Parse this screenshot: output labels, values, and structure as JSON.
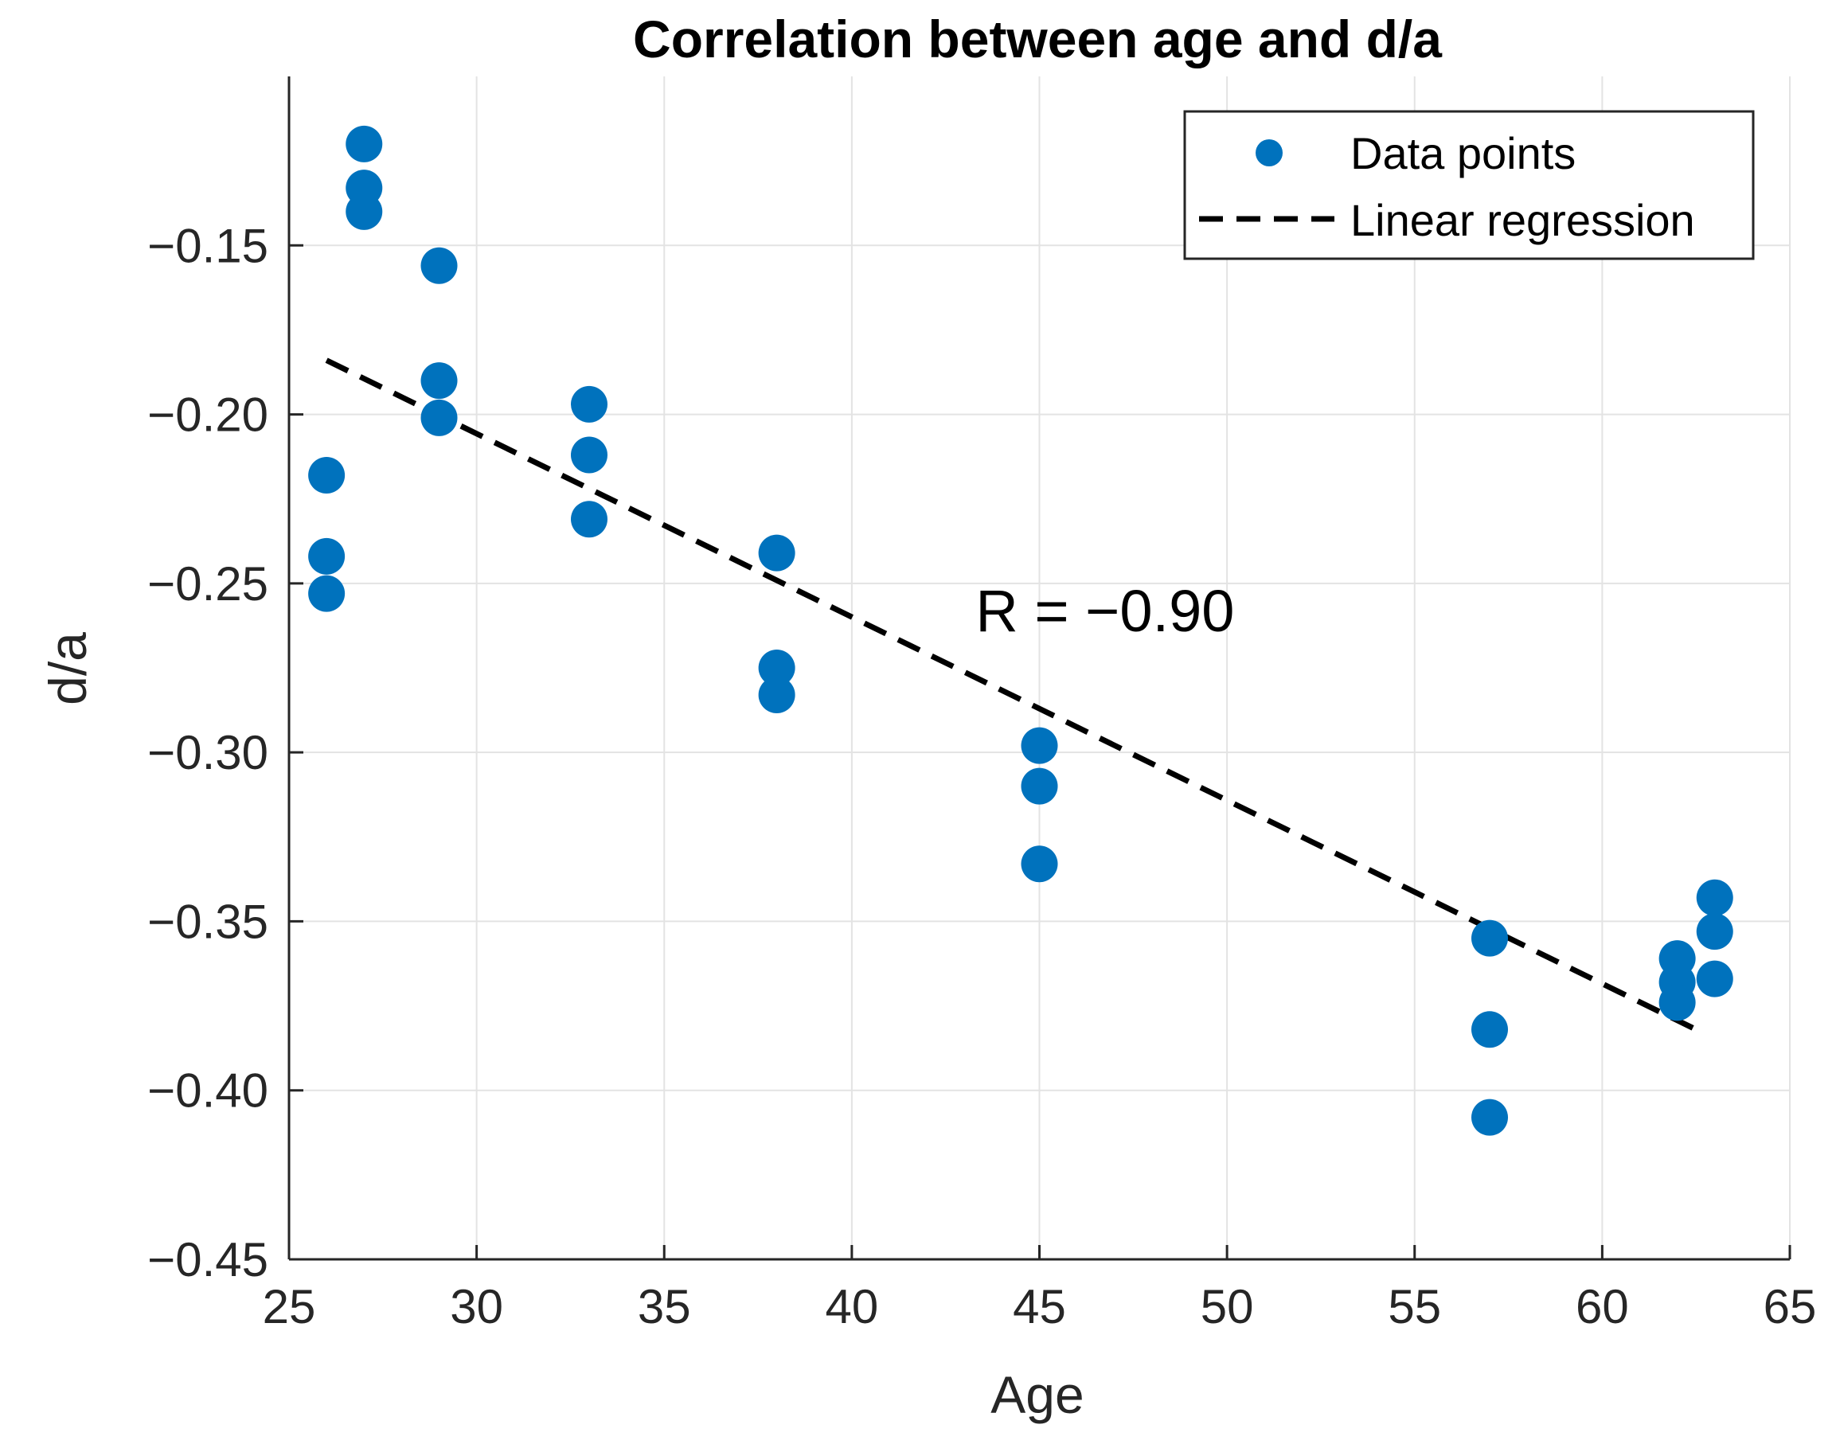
{
  "chart_data": {
    "type": "scatter",
    "title": "Correlation between age and d/a",
    "xlabel": "Age",
    "ylabel": "d/a",
    "xlim": [
      25,
      65
    ],
    "ylim": [
      -0.45,
      -0.1
    ],
    "x_ticks": [
      25,
      30,
      35,
      40,
      45,
      50,
      55,
      60,
      65
    ],
    "x_tick_labels": [
      "25",
      "30",
      "35",
      "40",
      "45",
      "50",
      "55",
      "60",
      "65"
    ],
    "y_ticks": [
      -0.45,
      -0.4,
      -0.35,
      -0.3,
      -0.25,
      -0.2,
      -0.15
    ],
    "y_tick_labels": [
      "−0.45",
      "−0.40",
      "−0.35",
      "−0.30",
      "−0.25",
      "−0.20",
      "−0.15"
    ],
    "grid": true,
    "legend_position": "top-right",
    "series": [
      {
        "name": "Data points",
        "kind": "scatter",
        "color": "#0072BD",
        "points": [
          {
            "x": 26,
            "y": -0.218
          },
          {
            "x": 26,
            "y": -0.242
          },
          {
            "x": 26,
            "y": -0.253
          },
          {
            "x": 27,
            "y": -0.12
          },
          {
            "x": 27,
            "y": -0.133
          },
          {
            "x": 27,
            "y": -0.14
          },
          {
            "x": 29,
            "y": -0.156
          },
          {
            "x": 29,
            "y": -0.19
          },
          {
            "x": 29,
            "y": -0.201
          },
          {
            "x": 33,
            "y": -0.197
          },
          {
            "x": 33,
            "y": -0.212
          },
          {
            "x": 33,
            "y": -0.231
          },
          {
            "x": 38,
            "y": -0.241
          },
          {
            "x": 38,
            "y": -0.275
          },
          {
            "x": 38,
            "y": -0.283
          },
          {
            "x": 45,
            "y": -0.298
          },
          {
            "x": 45,
            "y": -0.31
          },
          {
            "x": 45,
            "y": -0.333
          },
          {
            "x": 57,
            "y": -0.355
          },
          {
            "x": 57,
            "y": -0.382
          },
          {
            "x": 57,
            "y": -0.408
          },
          {
            "x": 62,
            "y": -0.361
          },
          {
            "x": 62,
            "y": -0.368
          },
          {
            "x": 62,
            "y": -0.374
          },
          {
            "x": 63,
            "y": -0.343
          },
          {
            "x": 63,
            "y": -0.353
          },
          {
            "x": 63,
            "y": -0.367
          }
        ]
      },
      {
        "name": "Linear regression",
        "kind": "line",
        "style": "dashed",
        "color": "#000000",
        "points": [
          {
            "x": 26,
            "y": -0.184
          },
          {
            "x": 62.5,
            "y": -0.382
          }
        ]
      }
    ],
    "annotations": [
      {
        "text": "R = −0.90",
        "x": 43.3,
        "y": -0.258
      }
    ]
  }
}
